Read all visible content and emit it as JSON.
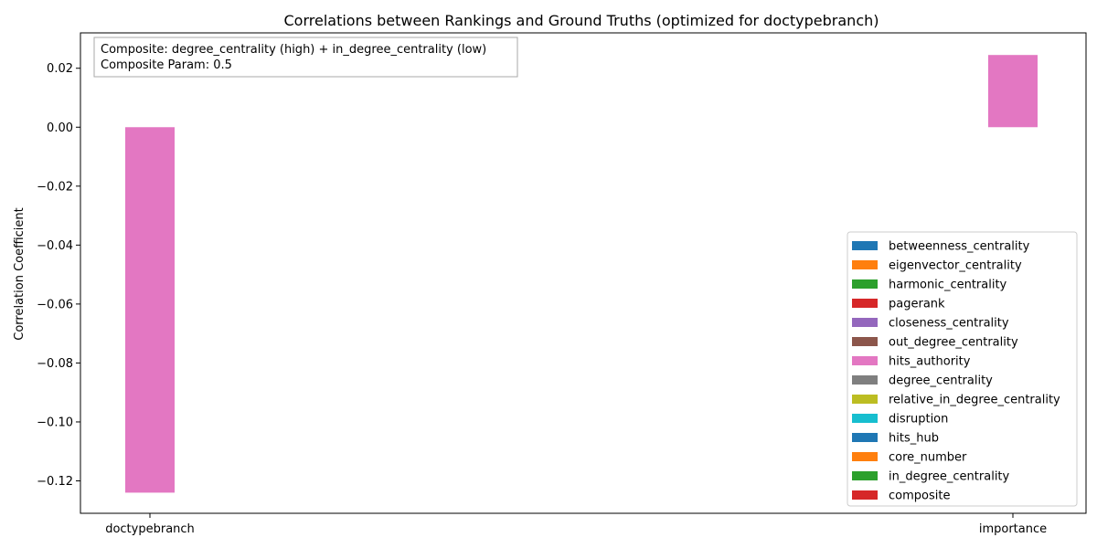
{
  "chart_data": {
    "type": "bar",
    "title": "Correlations between Rankings and Ground Truths (optimized for doctypebranch)",
    "xlabel": "",
    "ylabel": "Correlation Coefficient",
    "categories": [
      "doctypebranch",
      "importance"
    ],
    "ylim": [
      -0.131,
      0.032
    ],
    "yticks": [
      -0.12,
      -0.1,
      -0.08,
      -0.06,
      -0.04,
      -0.02,
      0.0,
      0.02
    ],
    "ytick_labels": [
      "−0.12",
      "−0.10",
      "−0.08",
      "−0.06",
      "−0.04",
      "−0.02",
      "0.00",
      "0.02"
    ],
    "grid": false,
    "legend_position": "lower-right",
    "annotation": [
      "Composite: degree_centrality (high) + in_degree_centrality (low)",
      "Composite Param: 0.5"
    ],
    "series": [
      {
        "name": "betweenness_centrality",
        "color": "#1f77b4",
        "values": [
          0,
          0
        ]
      },
      {
        "name": "eigenvector_centrality",
        "color": "#ff7f0e",
        "values": [
          0,
          0
        ]
      },
      {
        "name": "harmonic_centrality",
        "color": "#2ca02c",
        "values": [
          0,
          0
        ]
      },
      {
        "name": "pagerank",
        "color": "#d62728",
        "values": [
          0,
          0
        ]
      },
      {
        "name": "closeness_centrality",
        "color": "#9467bd",
        "values": [
          0,
          0
        ]
      },
      {
        "name": "out_degree_centrality",
        "color": "#8c564b",
        "values": [
          0,
          0
        ]
      },
      {
        "name": "hits_authority",
        "color": "#e377c2",
        "values": [
          -0.124,
          0.0245
        ]
      },
      {
        "name": "degree_centrality",
        "color": "#7f7f7f",
        "values": [
          0,
          0
        ]
      },
      {
        "name": "relative_in_degree_centrality",
        "color": "#bcbd22",
        "values": [
          0,
          0
        ]
      },
      {
        "name": "disruption",
        "color": "#17becf",
        "values": [
          0,
          0
        ]
      },
      {
        "name": "hits_hub",
        "color": "#1f77b4",
        "values": [
          0,
          0
        ]
      },
      {
        "name": "core_number",
        "color": "#ff7f0e",
        "values": [
          0,
          0
        ]
      },
      {
        "name": "in_degree_centrality",
        "color": "#2ca02c",
        "values": [
          0,
          0
        ]
      },
      {
        "name": "composite",
        "color": "#d62728",
        "values": [
          0,
          0
        ]
      }
    ]
  }
}
